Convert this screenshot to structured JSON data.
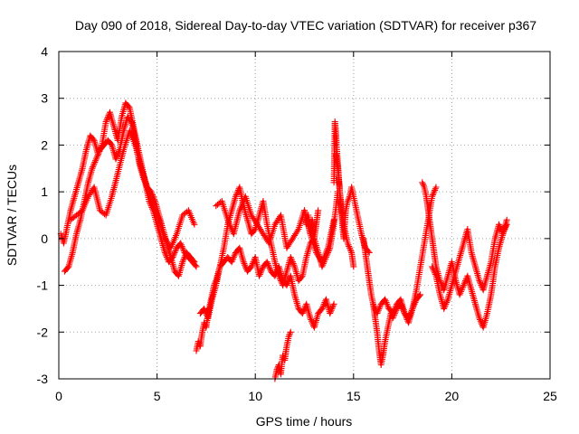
{
  "chart_data": {
    "type": "scatter",
    "title": "Day 090 of 2018, Sidereal Day-to-day VTEC variation (SDTVAR) for receiver p367",
    "xlabel": "GPS time / hours",
    "ylabel": "SDTVAR / TECUs",
    "xlim": [
      0,
      25
    ],
    "ylim": [
      -3,
      4
    ],
    "xticks": [
      "0",
      "5",
      "10",
      "15",
      "20",
      "25"
    ],
    "yticks": [
      "-3",
      "-2",
      "-1",
      "0",
      "1",
      "2",
      "3",
      "4"
    ],
    "grid": true,
    "marker": "plus",
    "series": [
      {
        "name": "SDTVAR",
        "color": "#ff0000",
        "tracks": [
          {
            "x": [
              0.1,
              0.25,
              0.4,
              0.6,
              0.8,
              1.0,
              1.2,
              1.4,
              1.6,
              1.8,
              2.0,
              2.2,
              2.4,
              2.6,
              2.8,
              3.0,
              3.2,
              3.4,
              3.6,
              3.8,
              4.0,
              4.2,
              4.4,
              4.6,
              4.8,
              5.0,
              5.2,
              5.4,
              5.6,
              5.8,
              6.0,
              6.2,
              6.4,
              6.6,
              6.8,
              7.0
            ],
            "y": [
              0.1,
              -0.1,
              0.2,
              0.6,
              0.9,
              1.2,
              1.5,
              1.9,
              2.2,
              2.1,
              1.8,
              2.0,
              2.5,
              2.7,
              2.4,
              2.1,
              2.6,
              2.9,
              2.8,
              2.4,
              2.0,
              1.6,
              1.2,
              0.8,
              0.6,
              0.3,
              0.0,
              -0.3,
              -0.5,
              -0.4,
              -0.2,
              -0.1,
              -0.3,
              -0.4,
              -0.5,
              -0.6
            ]
          },
          {
            "x": [
              0.3,
              0.5,
              0.7,
              0.9,
              1.1,
              1.3,
              1.5,
              1.7,
              1.9,
              2.1,
              2.3,
              2.5,
              2.7,
              2.9,
              3.1,
              3.3,
              3.5,
              3.7,
              3.9,
              4.1,
              4.3,
              4.5,
              4.7,
              4.9,
              5.1,
              5.3,
              5.5,
              5.7,
              5.9,
              6.1,
              6.3,
              6.5,
              6.7,
              6.9
            ],
            "y": [
              -0.7,
              -0.6,
              -0.3,
              0.1,
              0.4,
              0.8,
              1.2,
              1.5,
              1.7,
              1.9,
              2.0,
              2.1,
              2.0,
              1.7,
              1.9,
              2.3,
              2.6,
              2.5,
              2.1,
              1.6,
              1.3,
              1.1,
              1.0,
              0.8,
              0.5,
              0.2,
              -0.1,
              -0.4,
              -0.7,
              -0.8,
              -0.5,
              -0.3,
              -0.4,
              -0.5
            ]
          },
          {
            "x": [
              0.6,
              0.9,
              1.2,
              1.5,
              1.8,
              2.1,
              2.4,
              2.7,
              3.0,
              3.3,
              3.6,
              3.9,
              4.2,
              4.5,
              4.8,
              5.1,
              5.4,
              5.7,
              6.0,
              6.3,
              6.6,
              6.9
            ],
            "y": [
              0.4,
              0.5,
              0.6,
              0.9,
              1.1,
              0.6,
              0.5,
              0.9,
              1.4,
              1.9,
              2.3,
              2.0,
              1.5,
              1.1,
              0.7,
              0.4,
              0.0,
              -0.2,
              0.1,
              0.5,
              0.6,
              0.3
            ]
          },
          {
            "x": [
              7.0,
              7.1,
              7.2,
              7.3,
              7.4,
              7.5,
              7.6,
              7.7,
              7.8,
              7.9,
              8.0,
              8.2,
              8.4,
              8.6,
              8.8,
              9.0,
              9.2,
              9.4,
              9.6,
              9.8,
              10.0,
              10.2,
              10.4,
              10.6,
              10.8,
              11.0,
              11.2,
              11.4,
              11.6,
              11.8,
              12.0,
              12.2,
              12.4,
              12.6,
              12.8,
              13.0,
              13.2,
              13.4,
              13.6,
              13.8,
              14.0
            ],
            "y": [
              -2.4,
              -2.2,
              -2.3,
              -2.0,
              -1.8,
              -1.9,
              -1.6,
              -1.4,
              -1.2,
              -1.0,
              -0.9,
              -0.6,
              -0.5,
              -0.4,
              -0.5,
              -0.3,
              -0.2,
              -0.5,
              -0.7,
              -0.6,
              -0.4,
              -0.8,
              -0.6,
              -0.5,
              -0.7,
              -0.8,
              -0.6,
              -0.9,
              -1.0,
              -0.8,
              -1.2,
              -1.5,
              -1.6,
              -1.4,
              -1.7,
              -1.9,
              -1.6,
              -1.5,
              -1.3,
              -1.6,
              -1.4
            ]
          },
          {
            "x": [
              7.2,
              7.4,
              7.6,
              7.8,
              8.0,
              8.2,
              8.4,
              8.6,
              8.8,
              9.0,
              9.2,
              9.4,
              9.6,
              9.8,
              10.0,
              10.2,
              10.4,
              10.6,
              10.8,
              11.0,
              11.2,
              11.4,
              11.6,
              11.8,
              12.0,
              12.2,
              12.4,
              12.6,
              12.8,
              13.0,
              13.2,
              13.4,
              13.6,
              13.8,
              14.0,
              14.2
            ],
            "y": [
              -1.6,
              -1.5,
              -1.7,
              -1.3,
              -1.0,
              -0.6,
              -0.2,
              0.3,
              0.6,
              0.9,
              1.1,
              0.7,
              0.4,
              0.1,
              0.2,
              0.5,
              0.8,
              0.3,
              -0.1,
              -0.5,
              -0.8,
              -1.0,
              -0.7,
              -0.4,
              -0.6,
              -0.9,
              -0.8,
              -0.4,
              -0.1,
              0.0,
              -0.3,
              -0.6,
              -0.4,
              -0.2,
              0.3,
              1.0
            ]
          },
          {
            "x": [
              8.0,
              8.3,
              8.6,
              8.9,
              9.2,
              9.5,
              9.8,
              10.1,
              10.4,
              10.7,
              11.0,
              11.3,
              11.6,
              11.9,
              12.2,
              12.5,
              12.8,
              13.1,
              13.4,
              13.7,
              14.0
            ],
            "y": [
              0.7,
              0.8,
              0.4,
              0.1,
              0.6,
              0.9,
              0.5,
              0.3,
              0.1,
              -0.1,
              0.3,
              0.5,
              -0.2,
              0.0,
              0.2,
              0.6,
              0.1,
              -0.3,
              -0.5,
              -0.2,
              0.4
            ]
          },
          {
            "x": [
              11.0,
              11.1,
              11.2,
              11.3,
              11.4,
              11.5,
              11.6,
              11.7,
              11.8
            ],
            "y": [
              -3.0,
              -2.8,
              -2.7,
              -2.9,
              -2.5,
              -2.6,
              -2.3,
              -2.1,
              -2.0
            ]
          },
          {
            "x": [
              12.5,
              12.6,
              12.7,
              12.8,
              12.9,
              13.0,
              13.1,
              13.2
            ],
            "y": [
              0.6,
              0.3,
              0.5,
              0.1,
              0.4,
              0.0,
              0.3,
              0.6
            ]
          },
          {
            "x": [
              14.0,
              14.05,
              14.1,
              14.15,
              14.2,
              14.25,
              14.3,
              14.35,
              14.4,
              14.45,
              14.5,
              14.55,
              14.6,
              14.7,
              14.8,
              14.9,
              15.0,
              15.2,
              15.4,
              15.6,
              15.8
            ],
            "y": [
              1.2,
              2.5,
              2.3,
              1.9,
              1.6,
              1.3,
              1.0,
              0.7,
              0.5,
              0.2,
              0.0,
              0.3,
              0.6,
              0.8,
              0.9,
              1.1,
              0.9,
              0.5,
              0.1,
              -0.2,
              -0.3
            ]
          },
          {
            "x": [
              14.1,
              14.2,
              14.3,
              14.4,
              14.5,
              14.6,
              14.7,
              14.8,
              14.9,
              15.0
            ],
            "y": [
              1.8,
              1.5,
              1.0,
              0.6,
              0.3,
              0.1,
              -0.1,
              -0.2,
              -0.3,
              -0.6
            ]
          },
          {
            "x": [
              15.5,
              15.6,
              15.7,
              15.8,
              15.9,
              16.0,
              16.1,
              16.2,
              16.3,
              16.4,
              16.5,
              16.6,
              16.7,
              16.8,
              16.9,
              17.0,
              17.2,
              17.4,
              17.6,
              17.8,
              18.0,
              18.2,
              18.4
            ],
            "y": [
              0.0,
              -0.3,
              -0.6,
              -0.9,
              -1.2,
              -1.4,
              -1.7,
              -2.0,
              -2.4,
              -2.7,
              -2.5,
              -2.2,
              -2.0,
              -1.8,
              -1.6,
              -1.7,
              -1.5,
              -1.4,
              -1.6,
              -1.7,
              -1.5,
              -1.3,
              -1.2
            ]
          },
          {
            "x": [
              16.0,
              16.2,
              16.4,
              16.6,
              16.8,
              17.0,
              17.2,
              17.4,
              17.6,
              17.8,
              18.0,
              18.2,
              18.4,
              18.6,
              18.8,
              19.0,
              19.2
            ],
            "y": [
              -1.4,
              -1.6,
              -1.4,
              -1.3,
              -1.5,
              -1.6,
              -1.4,
              -1.3,
              -1.6,
              -1.8,
              -1.5,
              -1.1,
              -0.6,
              -0.1,
              0.4,
              0.9,
              1.1
            ]
          },
          {
            "x": [
              18.5,
              18.6,
              18.7,
              18.8,
              18.9,
              19.0,
              19.1,
              19.2,
              19.4,
              19.6,
              19.8,
              20.0,
              20.2,
              20.4,
              20.6,
              20.8,
              21.0,
              21.2,
              21.4,
              21.6,
              21.8,
              22.0,
              22.2,
              22.4,
              22.6,
              22.8
            ],
            "y": [
              1.2,
              1.1,
              0.9,
              0.6,
              0.3,
              0.0,
              -0.3,
              -0.6,
              -0.9,
              -1.1,
              -0.8,
              -0.5,
              -0.9,
              -1.2,
              -1.0,
              -0.8,
              -1.1,
              -1.4,
              -1.7,
              -1.9,
              -1.6,
              -1.2,
              -0.6,
              -0.2,
              0.1,
              0.4
            ]
          },
          {
            "x": [
              19.0,
              19.2,
              19.4,
              19.6,
              19.8,
              20.0,
              20.2,
              20.4,
              20.6,
              20.8,
              21.0,
              21.2,
              21.4,
              21.6,
              21.8,
              22.0,
              22.2,
              22.4,
              22.6,
              22.8
            ],
            "y": [
              -0.6,
              -0.8,
              -1.2,
              -1.5,
              -1.3,
              -1.0,
              -0.7,
              -0.4,
              -0.1,
              0.2,
              -0.3,
              -0.6,
              -0.9,
              -1.1,
              -0.8,
              -0.5,
              0.0,
              0.3,
              0.1,
              0.3
            ]
          }
        ]
      }
    ]
  }
}
